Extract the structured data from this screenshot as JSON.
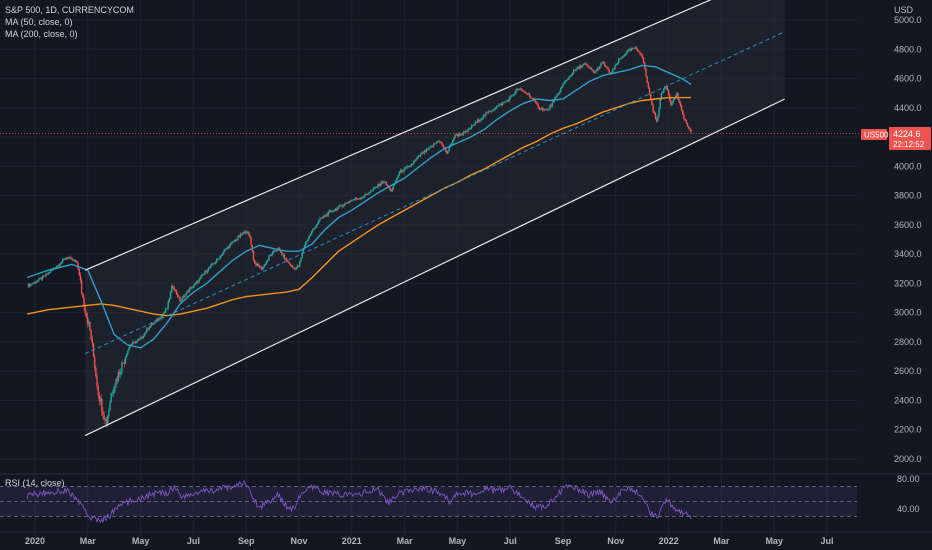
{
  "header": {
    "title": "S&P 500, 1D, CURRENCYCOM",
    "ma50_label": "MA (50, close, 0)",
    "ma200_label": "MA (200, close, 0)",
    "rsi_label": "RSI (14, close)",
    "currency": "USD"
  },
  "price_tag": {
    "symbol": "US500",
    "price": "4224.6",
    "countdown": "22:12:52"
  },
  "colors": {
    "background": "#131722",
    "grid": "#1f2430",
    "up": "#26a69a",
    "down": "#ef5350",
    "ma50": "#2e9fc9",
    "ma200": "#f5921b",
    "channel": "#e8e8e8",
    "midline": "#2a8fc4",
    "rsi": "#7e57c2",
    "price_line": "#ef5350"
  },
  "chart_data": {
    "type": "candlestick",
    "title": "S&P 500, 1D, CURRENCYCOM",
    "y_axis": {
      "label": "USD",
      "ticks": [
        "2000.0",
        "2200.0",
        "2400.0",
        "2600.0",
        "2800.0",
        "3000.0",
        "3200.0",
        "3400.0",
        "3600.0",
        "3800.0",
        "4000.0",
        "4200.0",
        "4400.0",
        "4600.0",
        "4800.0",
        "5000.0"
      ],
      "range": [
        1980,
        5100
      ]
    },
    "x_axis": {
      "ticks": [
        "2020",
        "Mar",
        "May",
        "Jul",
        "Sep",
        "Nov",
        "2021",
        "Mar",
        "May",
        "Jul",
        "Sep",
        "Nov",
        "2022",
        "Mar",
        "May",
        "Jul"
      ],
      "range_months": [
        0,
        31
      ]
    },
    "last_price": 4224.6,
    "price_path": [
      [
        -0.3,
        3180
      ],
      [
        0.3,
        3240
      ],
      [
        0.7,
        3300
      ],
      [
        1.2,
        3380
      ],
      [
        1.6,
        3340
      ],
      [
        1.8,
        3110
      ],
      [
        2.1,
        2860
      ],
      [
        2.4,
        2450
      ],
      [
        2.7,
        2240
      ],
      [
        2.9,
        2460
      ],
      [
        3.2,
        2600
      ],
      [
        3.6,
        2780
      ],
      [
        4.0,
        2820
      ],
      [
        4.3,
        2900
      ],
      [
        4.7,
        2960
      ],
      [
        5.0,
        3030
      ],
      [
        5.2,
        3190
      ],
      [
        5.5,
        3080
      ],
      [
        5.8,
        3150
      ],
      [
        6.1,
        3200
      ],
      [
        6.5,
        3290
      ],
      [
        6.9,
        3360
      ],
      [
        7.2,
        3430
      ],
      [
        7.6,
        3500
      ],
      [
        8.0,
        3560
      ],
      [
        8.15,
        3510
      ],
      [
        8.3,
        3340
      ],
      [
        8.6,
        3300
      ],
      [
        8.9,
        3390
      ],
      [
        9.2,
        3440
      ],
      [
        9.5,
        3360
      ],
      [
        9.8,
        3300
      ],
      [
        10.0,
        3320
      ],
      [
        10.2,
        3460
      ],
      [
        10.5,
        3560
      ],
      [
        10.8,
        3640
      ],
      [
        11.2,
        3690
      ],
      [
        11.6,
        3730
      ],
      [
        12.0,
        3770
      ],
      [
        12.4,
        3790
      ],
      [
        12.8,
        3840
      ],
      [
        13.2,
        3900
      ],
      [
        13.5,
        3830
      ],
      [
        13.8,
        3960
      ],
      [
        14.2,
        4000
      ],
      [
        14.6,
        4080
      ],
      [
        15.0,
        4130
      ],
      [
        15.3,
        4180
      ],
      [
        15.6,
        4090
      ],
      [
        15.9,
        4210
      ],
      [
        16.3,
        4230
      ],
      [
        16.7,
        4300
      ],
      [
        17.1,
        4360
      ],
      [
        17.5,
        4410
      ],
      [
        17.9,
        4450
      ],
      [
        18.3,
        4530
      ],
      [
        18.7,
        4490
      ],
      [
        19.1,
        4400
      ],
      [
        19.4,
        4380
      ],
      [
        19.7,
        4460
      ],
      [
        20.0,
        4560
      ],
      [
        20.4,
        4650
      ],
      [
        20.8,
        4700
      ],
      [
        21.2,
        4640
      ],
      [
        21.5,
        4710
      ],
      [
        21.8,
        4630
      ],
      [
        22.1,
        4720
      ],
      [
        22.4,
        4780
      ],
      [
        22.7,
        4810
      ],
      [
        23.0,
        4760
      ],
      [
        23.2,
        4560
      ],
      [
        23.4,
        4390
      ],
      [
        23.55,
        4300
      ],
      [
        23.7,
        4480
      ],
      [
        23.9,
        4560
      ],
      [
        24.1,
        4420
      ],
      [
        24.3,
        4500
      ],
      [
        24.5,
        4370
      ],
      [
        24.7,
        4280
      ],
      [
        24.85,
        4224.6
      ]
    ],
    "ma50": [
      [
        -0.3,
        3240
      ],
      [
        0.5,
        3290
      ],
      [
        1.4,
        3330
      ],
      [
        2.0,
        3290
      ],
      [
        2.5,
        3080
      ],
      [
        3.0,
        2850
      ],
      [
        3.5,
        2780
      ],
      [
        4.0,
        2760
      ],
      [
        4.5,
        2820
      ],
      [
        5.0,
        2930
      ],
      [
        5.5,
        3060
      ],
      [
        6.0,
        3140
      ],
      [
        6.5,
        3200
      ],
      [
        7.0,
        3280
      ],
      [
        7.5,
        3360
      ],
      [
        8.0,
        3420
      ],
      [
        8.5,
        3460
      ],
      [
        9.0,
        3440
      ],
      [
        9.5,
        3420
      ],
      [
        10.0,
        3420
      ],
      [
        10.5,
        3470
      ],
      [
        11.0,
        3570
      ],
      [
        11.5,
        3650
      ],
      [
        12.0,
        3700
      ],
      [
        12.5,
        3760
      ],
      [
        13.0,
        3820
      ],
      [
        13.5,
        3870
      ],
      [
        14.0,
        3920
      ],
      [
        14.5,
        3990
      ],
      [
        15.0,
        4060
      ],
      [
        15.5,
        4120
      ],
      [
        16.0,
        4160
      ],
      [
        16.5,
        4200
      ],
      [
        17.0,
        4250
      ],
      [
        17.5,
        4320
      ],
      [
        18.0,
        4380
      ],
      [
        18.5,
        4430
      ],
      [
        19.0,
        4460
      ],
      [
        19.5,
        4450
      ],
      [
        20.0,
        4460
      ],
      [
        20.5,
        4520
      ],
      [
        21.0,
        4580
      ],
      [
        21.5,
        4620
      ],
      [
        22.0,
        4640
      ],
      [
        22.5,
        4660
      ],
      [
        23.0,
        4690
      ],
      [
        23.5,
        4680
      ],
      [
        24.0,
        4640
      ],
      [
        24.5,
        4600
      ],
      [
        24.85,
        4560
      ]
    ],
    "ma200": [
      [
        -0.3,
        2990
      ],
      [
        0.5,
        3020
      ],
      [
        1.5,
        3040
      ],
      [
        2.5,
        3060
      ],
      [
        3.0,
        3050
      ],
      [
        3.5,
        3030
      ],
      [
        4.0,
        3010
      ],
      [
        4.5,
        2990
      ],
      [
        5.0,
        2980
      ],
      [
        5.5,
        2990
      ],
      [
        6.0,
        3010
      ],
      [
        6.5,
        3030
      ],
      [
        7.0,
        3060
      ],
      [
        7.5,
        3090
      ],
      [
        8.0,
        3110
      ],
      [
        8.5,
        3120
      ],
      [
        9.0,
        3130
      ],
      [
        9.5,
        3140
      ],
      [
        10.0,
        3160
      ],
      [
        10.5,
        3240
      ],
      [
        11.0,
        3330
      ],
      [
        11.5,
        3420
      ],
      [
        12.0,
        3480
      ],
      [
        12.5,
        3540
      ],
      [
        13.0,
        3600
      ],
      [
        13.5,
        3650
      ],
      [
        14.0,
        3700
      ],
      [
        14.5,
        3750
      ],
      [
        15.0,
        3800
      ],
      [
        15.5,
        3850
      ],
      [
        16.0,
        3890
      ],
      [
        16.5,
        3940
      ],
      [
        17.0,
        3980
      ],
      [
        17.5,
        4030
      ],
      [
        18.0,
        4080
      ],
      [
        18.5,
        4130
      ],
      [
        19.0,
        4170
      ],
      [
        19.5,
        4220
      ],
      [
        20.0,
        4260
      ],
      [
        20.5,
        4290
      ],
      [
        21.0,
        4330
      ],
      [
        21.5,
        4370
      ],
      [
        22.0,
        4400
      ],
      [
        22.5,
        4430
      ],
      [
        23.0,
        4450
      ],
      [
        23.5,
        4460
      ],
      [
        24.0,
        4470
      ],
      [
        24.5,
        4470
      ],
      [
        24.85,
        4470
      ]
    ],
    "channel": {
      "upper": [
        [
          1.9,
          3290
        ],
        [
          26.0,
          5170
        ]
      ],
      "lower": [
        [
          1.9,
          2160
        ],
        [
          28.4,
          4460
        ]
      ],
      "mid": [
        [
          1.9,
          2720
        ],
        [
          28.4,
          4920
        ]
      ]
    },
    "rsi": {
      "ticks": [
        "80.00",
        "40.00"
      ],
      "range": [
        18,
        88
      ],
      "levels": [
        70,
        50,
        30
      ],
      "path": [
        [
          -0.3,
          58
        ],
        [
          0.5,
          62
        ],
        [
          1.2,
          65
        ],
        [
          1.6,
          52
        ],
        [
          2.0,
          32
        ],
        [
          2.4,
          24
        ],
        [
          2.8,
          30
        ],
        [
          3.2,
          45
        ],
        [
          3.6,
          50
        ],
        [
          4.0,
          55
        ],
        [
          4.5,
          60
        ],
        [
          5.0,
          62
        ],
        [
          5.3,
          70
        ],
        [
          5.6,
          55
        ],
        [
          6.0,
          60
        ],
        [
          6.5,
          64
        ],
        [
          7.0,
          66
        ],
        [
          7.5,
          70
        ],
        [
          8.0,
          75
        ],
        [
          8.2,
          58
        ],
        [
          8.5,
          42
        ],
        [
          8.8,
          50
        ],
        [
          9.2,
          58
        ],
        [
          9.5,
          45
        ],
        [
          9.8,
          40
        ],
        [
          10.1,
          62
        ],
        [
          10.5,
          68
        ],
        [
          11.0,
          62
        ],
        [
          11.5,
          60
        ],
        [
          12.0,
          58
        ],
        [
          12.5,
          62
        ],
        [
          13.0,
          66
        ],
        [
          13.4,
          48
        ],
        [
          13.8,
          60
        ],
        [
          14.2,
          64
        ],
        [
          14.6,
          68
        ],
        [
          15.0,
          66
        ],
        [
          15.4,
          60
        ],
        [
          15.7,
          50
        ],
        [
          16.0,
          62
        ],
        [
          16.5,
          60
        ],
        [
          17.0,
          66
        ],
        [
          17.5,
          64
        ],
        [
          18.0,
          68
        ],
        [
          18.5,
          56
        ],
        [
          19.0,
          42
        ],
        [
          19.4,
          46
        ],
        [
          19.8,
          60
        ],
        [
          20.2,
          70
        ],
        [
          20.6,
          66
        ],
        [
          21.0,
          58
        ],
        [
          21.4,
          64
        ],
        [
          21.8,
          50
        ],
        [
          22.2,
          62
        ],
        [
          22.6,
          68
        ],
        [
          23.0,
          56
        ],
        [
          23.3,
          36
        ],
        [
          23.6,
          30
        ],
        [
          23.9,
          52
        ],
        [
          24.2,
          44
        ],
        [
          24.5,
          34
        ],
        [
          24.85,
          30
        ]
      ]
    }
  }
}
